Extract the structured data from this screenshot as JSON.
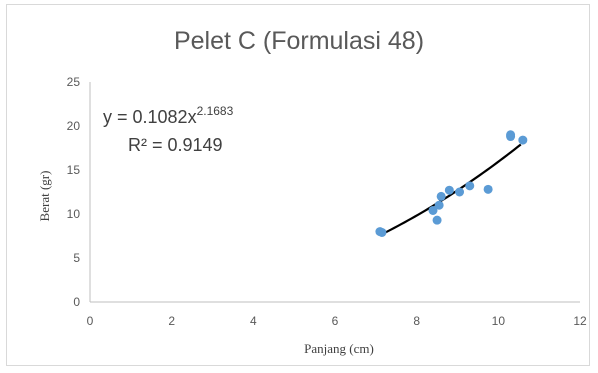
{
  "chart_data": {
    "type": "scatter",
    "title": "Pelet C (Formulasi 48)",
    "xlabel": "Panjang (cm)",
    "ylabel": "Berat (gr)",
    "xlim": [
      0,
      12
    ],
    "ylim": [
      0,
      25
    ],
    "xticks": [
      0,
      2,
      4,
      6,
      8,
      10,
      12
    ],
    "yticks": [
      0,
      5,
      10,
      15,
      20,
      25
    ],
    "grid": false,
    "marker_color": "#5b9bd5",
    "trendline_color": "#000000",
    "points": [
      {
        "x": 7.1,
        "y": 8.0
      },
      {
        "x": 7.15,
        "y": 7.9
      },
      {
        "x": 8.4,
        "y": 10.4
      },
      {
        "x": 8.5,
        "y": 9.3
      },
      {
        "x": 8.55,
        "y": 11.0
      },
      {
        "x": 8.6,
        "y": 12.0
      },
      {
        "x": 8.8,
        "y": 12.7
      },
      {
        "x": 9.05,
        "y": 12.5
      },
      {
        "x": 9.3,
        "y": 13.2
      },
      {
        "x": 9.75,
        "y": 12.8
      },
      {
        "x": 10.3,
        "y": 18.8
      },
      {
        "x": 10.3,
        "y": 19.0
      },
      {
        "x": 10.6,
        "y": 18.4
      }
    ],
    "trendline": {
      "type": "power",
      "a": 0.1082,
      "b": 2.1683,
      "x_range": [
        7.2,
        10.55
      ],
      "equation_base": "y = 0.1082x",
      "equation_exponent": "2.1683",
      "r2_label": "R² = 0.9149"
    }
  }
}
